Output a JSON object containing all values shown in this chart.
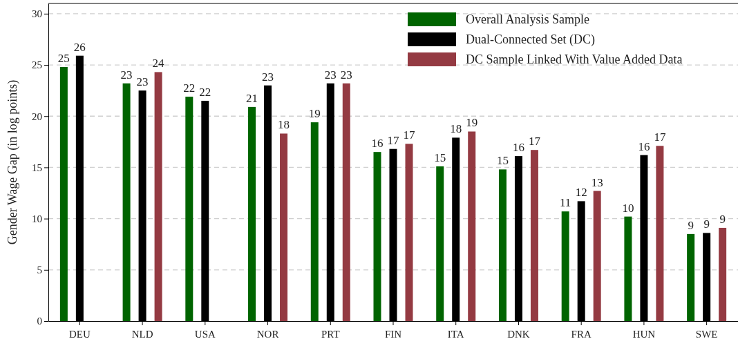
{
  "chart_data": {
    "type": "bar",
    "ylabel": "Gender Wage Gap (in log points)",
    "categories": [
      "DEU",
      "NLD",
      "USA",
      "NOR",
      "PRT",
      "FIN",
      "ITA",
      "DNK",
      "FRA",
      "HUN",
      "SWE"
    ],
    "series": [
      {
        "name": "Overall Analysis Sample",
        "color": "#006400",
        "values": [
          24.8,
          23.2,
          21.9,
          20.9,
          19.4,
          16.5,
          15.1,
          14.8,
          10.7,
          10.2,
          8.5
        ],
        "value_labels": [
          "25",
          "23",
          "22",
          "21",
          "19",
          "16",
          "15",
          "15",
          "11",
          "10",
          "9"
        ]
      },
      {
        "name": "Dual-Connected Set (DC)",
        "color": "#000000",
        "values": [
          25.9,
          22.5,
          21.5,
          23.0,
          23.2,
          16.8,
          17.9,
          16.1,
          11.7,
          16.2,
          8.6
        ],
        "value_labels": [
          "26",
          "23",
          "22",
          "23",
          "23",
          "17",
          "18",
          "16",
          "12",
          "16",
          "9"
        ]
      },
      {
        "name": "DC Sample Linked With Value Added Data",
        "color": "#943a42",
        "values": [
          null,
          24.3,
          null,
          18.3,
          23.2,
          17.3,
          18.5,
          16.7,
          12.7,
          17.1,
          9.1
        ],
        "value_labels": [
          null,
          "24",
          null,
          "18",
          "23",
          "17",
          "19",
          "17",
          "13",
          "17",
          "9"
        ]
      }
    ],
    "ylim": [
      0,
      31
    ],
    "yticks": [
      0,
      5,
      10,
      15,
      20,
      25,
      30
    ],
    "grid": "y",
    "legend": "top right"
  }
}
